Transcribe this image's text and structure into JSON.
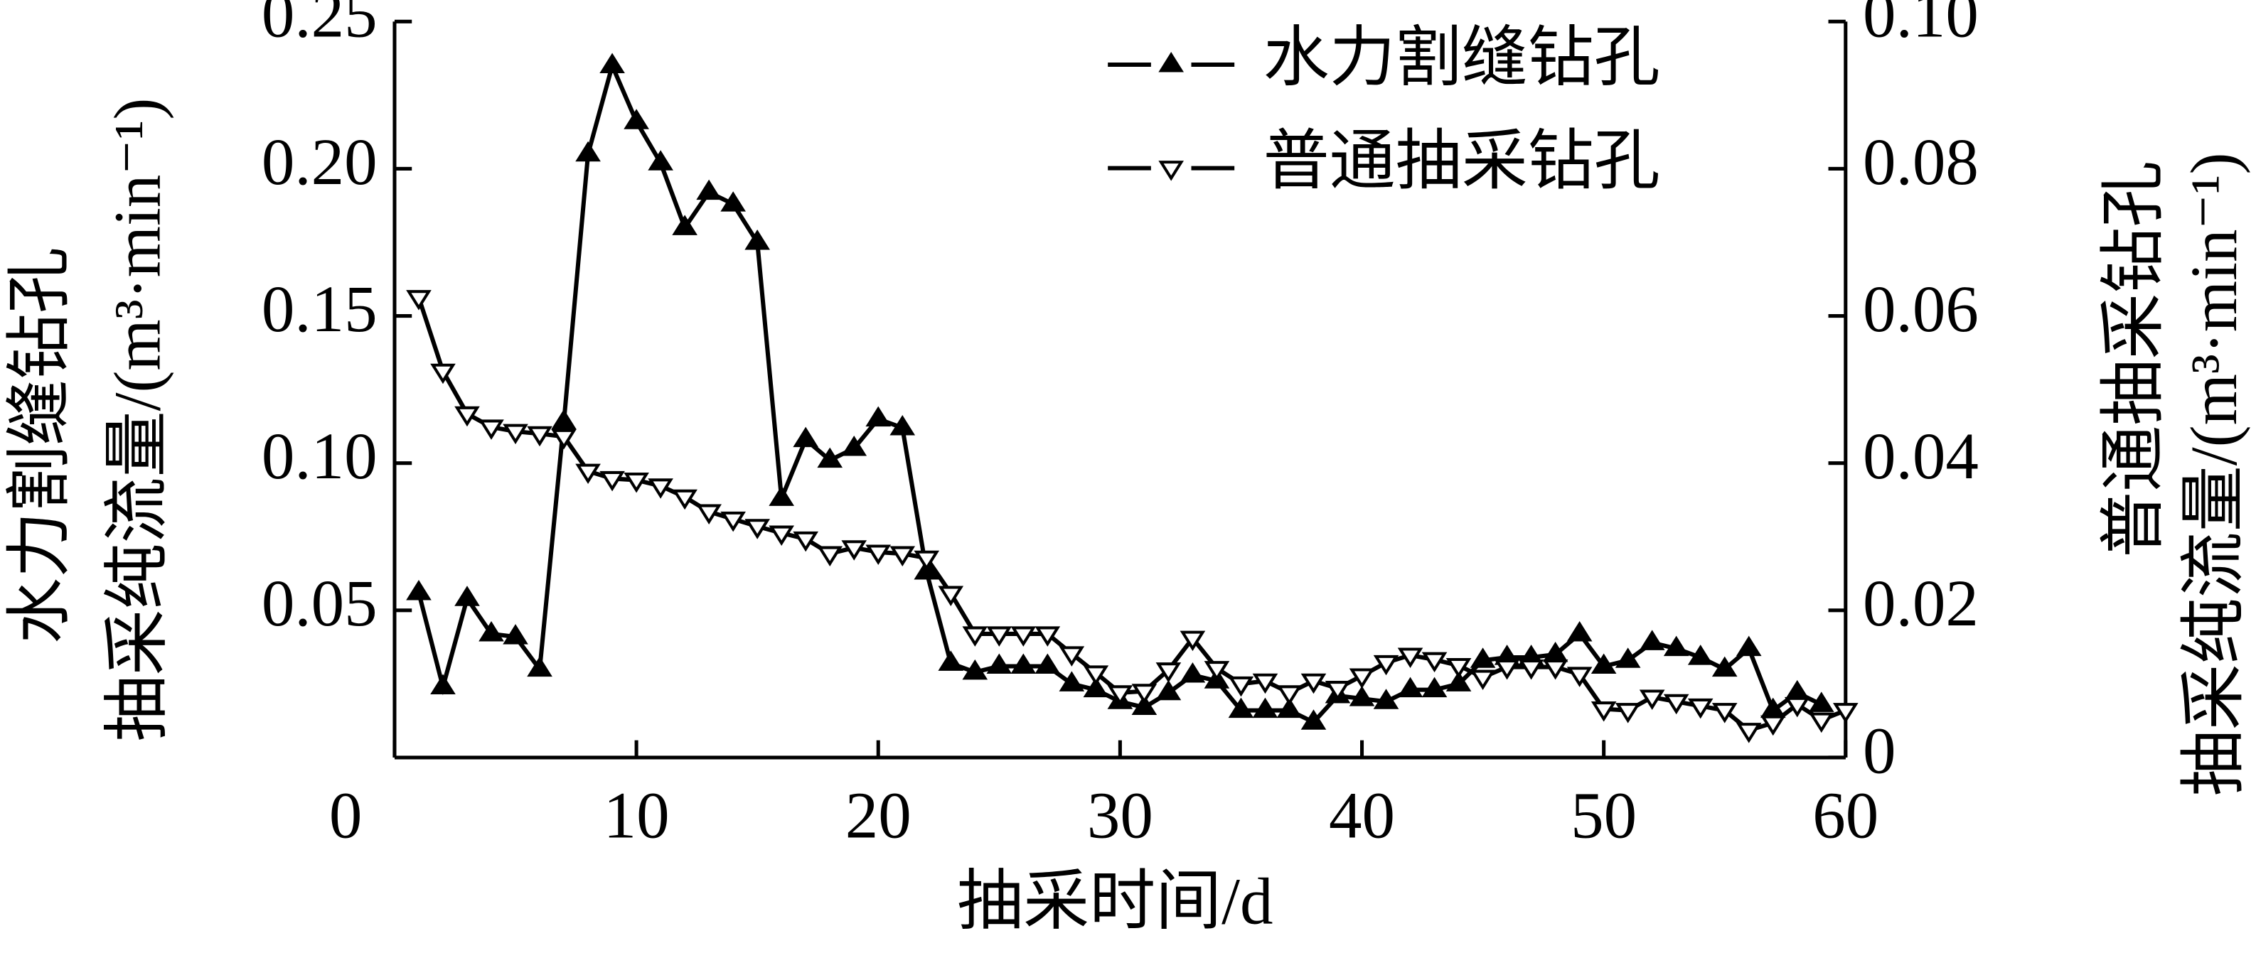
{
  "chart_data": {
    "type": "line",
    "x": [
      1,
      2,
      3,
      4,
      5,
      6,
      7,
      8,
      9,
      10,
      11,
      12,
      13,
      14,
      15,
      16,
      17,
      18,
      19,
      20,
      21,
      22,
      23,
      24,
      25,
      26,
      27,
      28,
      29,
      30,
      31,
      32,
      33,
      34,
      35,
      36,
      37,
      38,
      39,
      40,
      41,
      42,
      43,
      44,
      45,
      46,
      47,
      48,
      49,
      50,
      51,
      52,
      53,
      54,
      55,
      56,
      57,
      58,
      59,
      60
    ],
    "xlabel": "抽采时间/d",
    "ylabel": [
      "水力割缝钻孔",
      "抽采纯流量/(m³·min⁻¹)"
    ],
    "y2label": [
      "普通抽采钻孔",
      "抽采纯流量/(m³·min⁻¹)"
    ],
    "xlim": [
      0,
      60
    ],
    "xticks": [
      0,
      10,
      20,
      30,
      40,
      50,
      60
    ],
    "ylim": [
      0,
      0.25
    ],
    "yticks": [
      0.05,
      {
        "value": 0.1,
        "label": "0.10"
      },
      0.15,
      {
        "value": 0.2,
        "label": "0.20"
      },
      0.25
    ],
    "y2lim": [
      0,
      0.1
    ],
    "y2ticks": [
      0,
      0.02,
      0.04,
      0.06,
      0.08,
      {
        "value": 0.1,
        "label": "0.10"
      }
    ],
    "legend": "upper right",
    "series": [
      {
        "name": "水力割缝钻孔",
        "color": "#000000",
        "marker": "triangle-filled",
        "values": [
          0.056,
          0.024,
          0.054,
          0.042,
          0.041,
          0.03,
          0.114,
          0.205,
          0.235,
          0.216,
          0.202,
          0.18,
          0.192,
          0.188,
          0.175,
          0.088,
          0.108,
          0.101,
          0.105,
          0.115,
          0.112,
          0.063,
          0.032,
          0.029,
          0.031,
          0.031,
          0.031,
          0.025,
          0.023,
          0.019,
          0.017,
          0.022,
          0.028,
          0.026,
          0.016,
          0.016,
          0.016,
          0.012,
          0.021,
          0.02,
          0.019,
          0.023,
          0.023,
          0.025,
          0.033,
          0.034,
          0.034,
          0.035,
          0.042,
          0.031,
          0.033,
          0.039,
          0.037,
          0.034,
          0.03,
          0.037,
          0.016,
          0.022,
          0.018,
          null
        ]
      },
      {
        "name": "普通抽采钻孔",
        "color": "#000000",
        "marker": "triangle-open",
        "axis": "y2",
        "values": [
          0.0625,
          0.0525,
          0.0467,
          0.0449,
          0.0443,
          0.044,
          0.0436,
          0.0389,
          0.0379,
          0.0377,
          0.0369,
          0.0354,
          0.0334,
          0.0324,
          0.0314,
          0.0305,
          0.0297,
          0.0277,
          0.0285,
          0.0279,
          0.0277,
          0.0271,
          0.0223,
          0.0168,
          0.0168,
          0.0168,
          0.0168,
          0.0141,
          0.0115,
          0.0088,
          0.009,
          0.0119,
          0.0162,
          0.0121,
          0.01,
          0.0104,
          0.0088,
          0.0104,
          0.0094,
          0.0111,
          0.0129,
          0.0139,
          0.0133,
          0.0125,
          0.0109,
          0.0123,
          0.0123,
          0.0123,
          0.0113,
          0.0066,
          0.0064,
          0.0082,
          0.0076,
          0.007,
          0.0064,
          0.0037,
          0.0047,
          0.0072,
          0.0051,
          0.0064
        ]
      }
    ]
  }
}
